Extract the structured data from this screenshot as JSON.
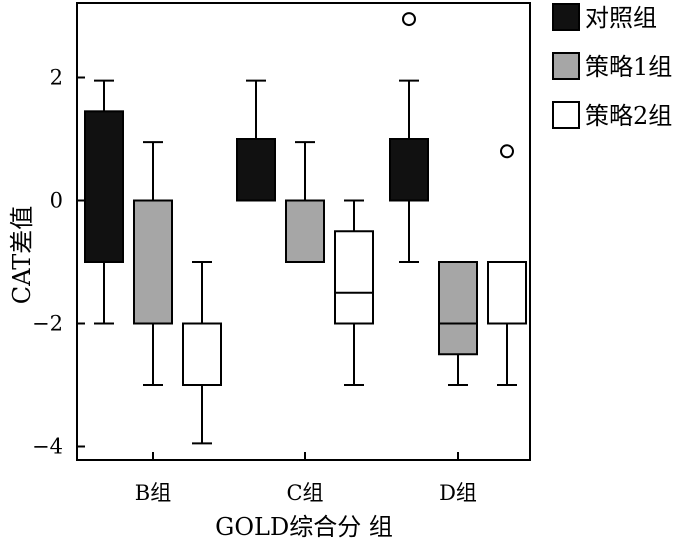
{
  "chart_data": {
    "type": "boxplot",
    "title": "",
    "xlabel": "GOLD综合分 组",
    "ylabel": "CAT差值",
    "ylim": [
      -4.25,
      3.1
    ],
    "yticks": [
      -4,
      -2,
      0,
      2
    ],
    "ytick_labels": [
      "−4",
      "−2",
      "0",
      "2"
    ],
    "categories": [
      "B组",
      "C组",
      "D组"
    ],
    "legend_position": "right",
    "series": [
      {
        "name": "对照组",
        "color": "#111111",
        "boxes": [
          {
            "whisker_low": -2,
            "q1": -1,
            "median": null,
            "q3": 1.45,
            "whisker_high": 1.95,
            "outliers": []
          },
          {
            "whisker_low": null,
            "q1": 0,
            "median": null,
            "q3": 1,
            "whisker_high": 1.95,
            "outliers": []
          },
          {
            "whisker_low": -1,
            "q1": 0,
            "median": null,
            "q3": 1,
            "whisker_high": 1.95,
            "outliers": [
              2.95
            ]
          }
        ]
      },
      {
        "name": "策略1组",
        "color": "#a6a6a6",
        "boxes": [
          {
            "whisker_low": -3,
            "q1": -2,
            "median": null,
            "q3": 0,
            "whisker_high": 0.95,
            "outliers": []
          },
          {
            "whisker_low": null,
            "q1": -1,
            "median": null,
            "q3": 0,
            "whisker_high": 0.95,
            "outliers": []
          },
          {
            "whisker_low": -3,
            "q1": -2.5,
            "median": -2,
            "q3": -1,
            "whisker_high": null,
            "outliers": []
          }
        ]
      },
      {
        "name": "策略2组",
        "color": "#ffffff",
        "boxes": [
          {
            "whisker_low": -3.95,
            "q1": -3,
            "median": null,
            "q3": -2,
            "whisker_high": -1,
            "outliers": []
          },
          {
            "whisker_low": -3,
            "q1": -2,
            "median": -1.5,
            "q3": -0.5,
            "whisker_high": 0,
            "outliers": []
          },
          {
            "whisker_low": -3,
            "q1": -2,
            "median": null,
            "q3": -1,
            "whisker_high": null,
            "outliers": [
              0.8
            ]
          }
        ]
      }
    ]
  }
}
